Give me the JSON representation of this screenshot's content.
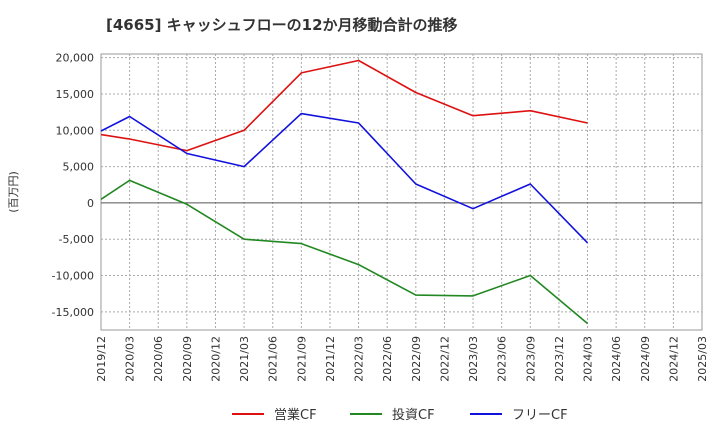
{
  "chart_data": {
    "type": "line",
    "title": "[4665]  キャッシュフローの12か月移動合計の推移",
    "ylabel": "(百万円)",
    "xlabel": "",
    "ylim": [
      -17500,
      20500
    ],
    "yticks": [
      20000,
      15000,
      10000,
      5000,
      0,
      -5000,
      -10000,
      -15000
    ],
    "ytick_labels": [
      "20,000",
      "15,000",
      "10,000",
      "5,000",
      "0",
      "-5,000",
      "-10,000",
      "-15,000"
    ],
    "categories": [
      "2019/12",
      "2020/03",
      "2020/06",
      "2020/09",
      "2020/12",
      "2021/03",
      "2021/06",
      "2021/09",
      "2021/12",
      "2022/03",
      "2022/06",
      "2022/09",
      "2022/12",
      "2023/03",
      "2023/06",
      "2023/09",
      "2023/12",
      "2024/03",
      "2024/06",
      "2024/09",
      "2024/12",
      "2025/03"
    ],
    "grid": true,
    "legend_position": "bottom",
    "series": [
      {
        "name": "営業CF",
        "color": "#dd1111",
        "x": [
          "2019/12",
          "2020/03",
          "2020/09",
          "2021/03",
          "2021/09",
          "2022/03",
          "2022/09",
          "2023/03",
          "2023/09",
          "2024/03"
        ],
        "values": [
          9400,
          8800,
          7200,
          10000,
          17900,
          19600,
          15200,
          12000,
          12700,
          11000
        ]
      },
      {
        "name": "投資CF",
        "color": "#228822",
        "x": [
          "2019/12",
          "2020/03",
          "2020/09",
          "2021/03",
          "2021/09",
          "2022/03",
          "2022/09",
          "2023/03",
          "2023/09",
          "2024/03"
        ],
        "values": [
          500,
          3100,
          -200,
          -5000,
          -5600,
          -8500,
          -12700,
          -12800,
          -10000,
          -16600
        ]
      },
      {
        "name": "フリーCF",
        "color": "#1111dd",
        "x": [
          "2019/12",
          "2020/03",
          "2020/09",
          "2021/03",
          "2021/09",
          "2022/03",
          "2022/09",
          "2023/03",
          "2023/09",
          "2024/03"
        ],
        "values": [
          9900,
          11900,
          6800,
          5000,
          12300,
          11000,
          2600,
          -800,
          2600,
          -5500
        ]
      }
    ]
  }
}
